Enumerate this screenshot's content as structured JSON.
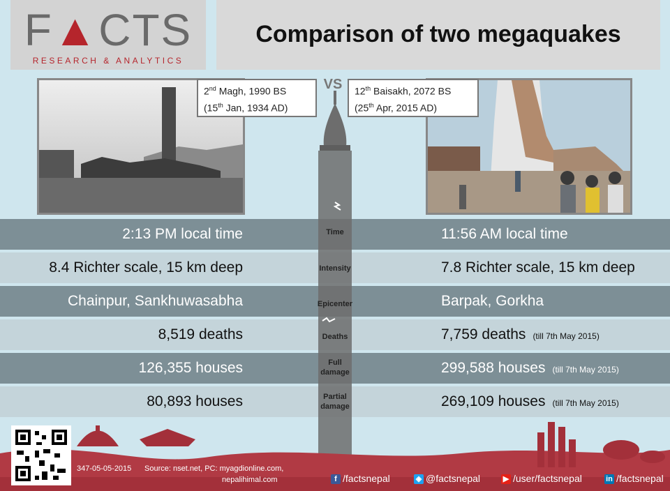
{
  "logo": {
    "text_a": "F",
    "text_b": "CTS",
    "subtitle": "RESEARCH & ANALYTICS"
  },
  "title": "Comparison of two megaquakes",
  "vs": "VS",
  "left_date": {
    "line1_day": "2",
    "line1_sup": "nd",
    "line1_rest": " Magh, 1990 BS",
    "line2_open": "(15",
    "line2_sup": "th",
    "line2_rest": " Jan, 1934 AD)"
  },
  "right_date": {
    "line1_day": "12",
    "line1_sup": "th",
    "line1_rest": " Baisakh, 2072 BS",
    "line2_open": "(25",
    "line2_sup": "th",
    "line2_rest": " Apr, 2015 AD)"
  },
  "rows": [
    {
      "label": "Time",
      "left": "2:13 PM local time",
      "right": "11:56 AM local time",
      "note": ""
    },
    {
      "label": "Intensity",
      "left": "8.4 Richter scale, 15 km deep",
      "right": "7.8 Richter scale, 15 km deep",
      "note": ""
    },
    {
      "label": "Epicenter",
      "left": "Chainpur, Sankhuwasabha",
      "right": "Barpak, Gorkha",
      "note": ""
    },
    {
      "label": "Deaths",
      "left": "8,519  deaths",
      "right": "7,759 deaths",
      "note": "(till 7th May 2015)"
    },
    {
      "label_l1": "Full",
      "label_l2": "damage",
      "left": "126,355 houses",
      "right": "299,588 houses",
      "note": "(till 7th May 2015)"
    },
    {
      "label_l1": "Partial",
      "label_l2": "damage",
      "left": "80,893 houses",
      "right": "269,109 houses",
      "note": "(till 7th May 2015)"
    }
  ],
  "footer": {
    "id": "347-05-05-2015",
    "source_l1": "Source: nset.net, PC: myagdionline.com,",
    "source_l2": "nepalihimal.com",
    "facebook": "/factsnepal",
    "twitter": "@factsnepal",
    "youtube": "/user/factsnepal",
    "linkedin": "/factsnepal"
  },
  "colors": {
    "brand_red": "#b5252c",
    "row_dark": "#7d8f96",
    "row_light": "#c4d4da",
    "footer": "#a3303a"
  },
  "icons": [
    "qr-code-icon",
    "facebook-icon",
    "twitter-icon",
    "youtube-icon",
    "linkedin-icon"
  ]
}
